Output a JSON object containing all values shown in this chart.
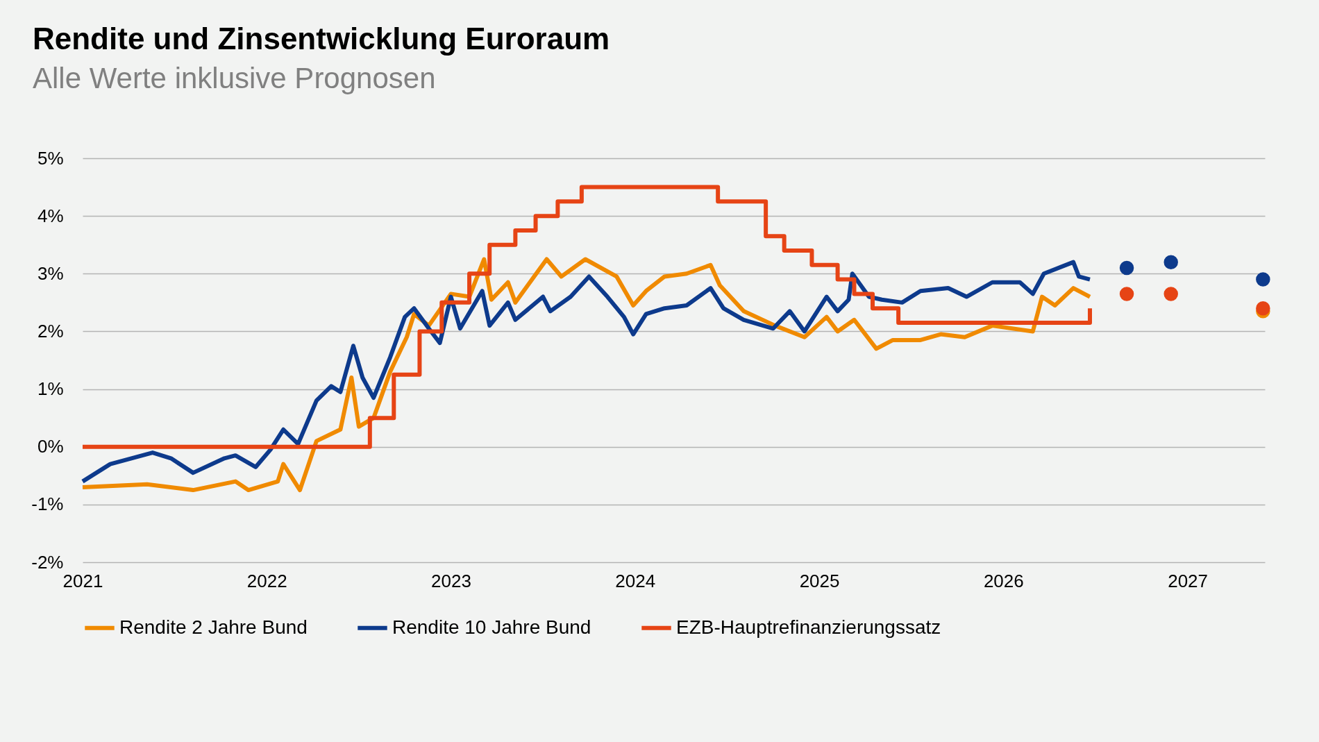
{
  "chart_data": {
    "type": "line",
    "title": "Rendite und Zinsentwicklung Euroraum",
    "subtitle": "Alle Werte inklusive Prognosen",
    "xlim": [
      2021,
      2027.42
    ],
    "xticks": [
      2021,
      2022,
      2023,
      2024,
      2025,
      2026,
      2027
    ],
    "ylim": [
      -2,
      5
    ],
    "yticks": [
      {
        "value": -2,
        "label": "-2%"
      },
      {
        "value": -1,
        "label": "-1%"
      },
      {
        "value": 0,
        "label": "0%"
      },
      {
        "value": 1,
        "label": "1%"
      },
      {
        "value": 2,
        "label": "2%"
      },
      {
        "value": 3,
        "label": "3%"
      },
      {
        "value": 4,
        "label": "4%"
      },
      {
        "value": 5,
        "label": "5%"
      }
    ],
    "grid": "y",
    "legend": "bottom",
    "series": [
      {
        "name": "Rendite 2 Jahre Bund",
        "color": "#f08a00",
        "x": [
          2021.0,
          2021.35,
          2021.6,
          2021.83,
          2021.9,
          2022.06,
          2022.09,
          2022.18,
          2022.27,
          2022.4,
          2022.46,
          2022.5,
          2022.58,
          2022.67,
          2022.76,
          2022.8,
          2022.88,
          2023.0,
          2023.1,
          2023.18,
          2023.22,
          2023.31,
          2023.35,
          2023.52,
          2023.6,
          2023.73,
          2023.9,
          2023.99,
          2024.06,
          2024.16,
          2024.28,
          2024.41,
          2024.46,
          2024.59,
          2024.76,
          2024.92,
          2025.04,
          2025.1,
          2025.19,
          2025.31,
          2025.4,
          2025.55,
          2025.66,
          2025.79,
          2025.94,
          2026.16,
          2026.21,
          2026.28,
          2026.38,
          2026.47
        ],
        "values": [
          -0.7,
          -0.65,
          -0.75,
          -0.6,
          -0.75,
          -0.6,
          -0.3,
          -0.75,
          0.1,
          0.3,
          1.2,
          0.35,
          0.5,
          1.3,
          1.9,
          2.3,
          2.1,
          2.65,
          2.6,
          3.25,
          2.55,
          2.85,
          2.5,
          3.25,
          2.95,
          3.25,
          2.95,
          2.45,
          2.7,
          2.95,
          3.0,
          3.15,
          2.8,
          2.35,
          2.1,
          1.9,
          2.25,
          2.0,
          2.2,
          1.7,
          1.85,
          1.85,
          1.95,
          1.9,
          2.1,
          2.0,
          2.6,
          2.45,
          2.75,
          2.6
        ]
      },
      {
        "name": "Rendite 10 Jahre Bund",
        "color": "#0d3a8c",
        "x": [
          2021.0,
          2021.15,
          2021.38,
          2021.48,
          2021.6,
          2021.77,
          2021.83,
          2021.94,
          2022.02,
          2022.09,
          2022.17,
          2022.27,
          2022.35,
          2022.4,
          2022.47,
          2022.52,
          2022.58,
          2022.67,
          2022.75,
          2022.8,
          2022.88,
          2022.94,
          2023.0,
          2023.05,
          2023.17,
          2023.21,
          2023.31,
          2023.35,
          2023.5,
          2023.54,
          2023.65,
          2023.75,
          2023.85,
          2023.94,
          2023.99,
          2024.06,
          2024.16,
          2024.28,
          2024.41,
          2024.48,
          2024.59,
          2024.75,
          2024.84,
          2024.92,
          2025.04,
          2025.1,
          2025.16,
          2025.18,
          2025.27,
          2025.34,
          2025.45,
          2025.55,
          2025.7,
          2025.8,
          2025.94,
          2026.09,
          2026.16,
          2026.22,
          2026.38,
          2026.41,
          2026.47
        ],
        "values": [
          -0.6,
          -0.3,
          -0.1,
          -0.2,
          -0.45,
          -0.2,
          -0.15,
          -0.35,
          -0.05,
          0.3,
          0.05,
          0.8,
          1.05,
          0.95,
          1.75,
          1.2,
          0.85,
          1.55,
          2.25,
          2.4,
          2.05,
          1.8,
          2.6,
          2.05,
          2.7,
          2.1,
          2.5,
          2.2,
          2.6,
          2.35,
          2.6,
          2.95,
          2.6,
          2.25,
          1.95,
          2.3,
          2.4,
          2.45,
          2.75,
          2.4,
          2.2,
          2.05,
          2.35,
          2.0,
          2.6,
          2.35,
          2.55,
          3.0,
          2.6,
          2.55,
          2.5,
          2.7,
          2.75,
          2.6,
          2.85,
          2.85,
          2.65,
          3.0,
          3.2,
          2.95,
          2.9
        ]
      },
      {
        "name": "EZB-Hauptrefinanzierungssatz",
        "type": "step",
        "color": "#e64415",
        "x": [
          2021.0,
          2022.56,
          2022.69,
          2022.83,
          2022.95,
          2023.1,
          2023.21,
          2023.35,
          2023.46,
          2023.58,
          2023.71,
          2024.45,
          2024.71,
          2024.81,
          2024.96,
          2025.1,
          2025.19,
          2025.29,
          2025.43,
          2026.47
        ],
        "values": [
          0,
          0.5,
          1.25,
          2.0,
          2.5,
          3.0,
          3.5,
          3.75,
          4.0,
          4.25,
          4.5,
          4.25,
          3.65,
          3.4,
          3.15,
          2.9,
          2.65,
          2.4,
          2.15,
          2.4
        ]
      },
      {
        "type": "scatter",
        "marker": "circle",
        "color": "#f08a00",
        "x": [
          2027.41
        ],
        "values": [
          2.35
        ]
      },
      {
        "type": "scatter",
        "marker": "circle",
        "color": "#0d3a8c",
        "x": [
          2026.67,
          2026.91,
          2027.41
        ],
        "values": [
          3.1,
          3.2,
          2.9
        ]
      },
      {
        "type": "scatter",
        "marker": "circle",
        "color": "#e64415",
        "x": [
          2026.67,
          2026.91,
          2027.41
        ],
        "values": [
          2.65,
          2.65,
          2.4
        ]
      }
    ]
  }
}
